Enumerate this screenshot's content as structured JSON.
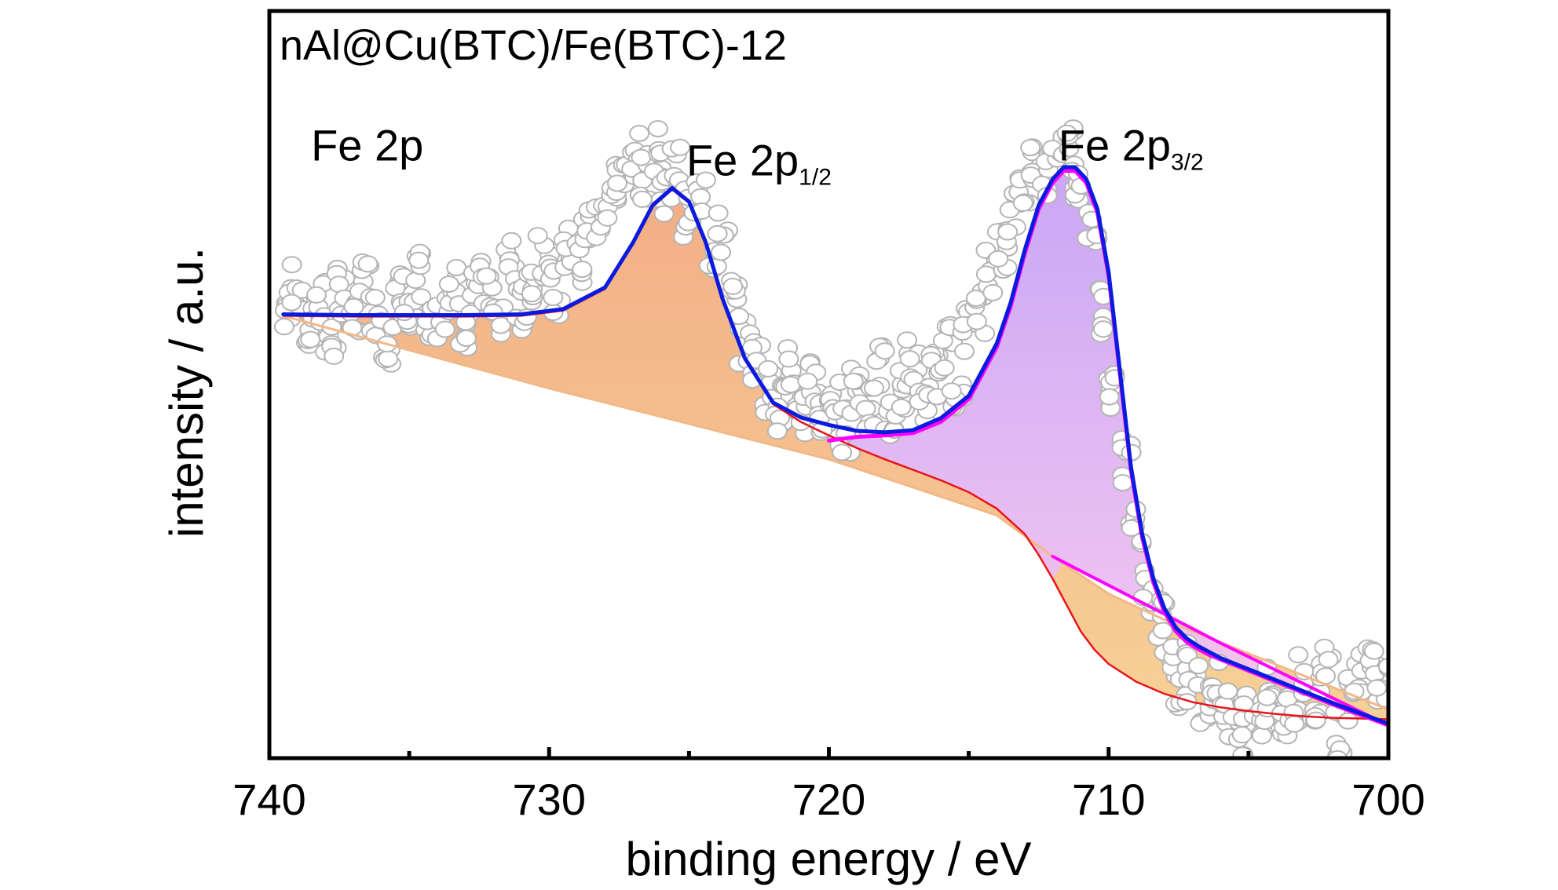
{
  "chart_data": {
    "type": "scatter",
    "title": "nAl@Cu(BTC)/Fe(BTC)-12",
    "xlabel": "binding energy / eV",
    "ylabel": "intensity / a.u.",
    "xlim": [
      740,
      700
    ],
    "ylim": [
      0,
      100
    ],
    "x_ticks": [
      740,
      730,
      720,
      710,
      700
    ],
    "x_tick_labels": [
      "740",
      "730",
      "720",
      "710",
      "700"
    ],
    "grid": false,
    "peaks": [
      {
        "label": "Fe 2p",
        "sub": "",
        "x": 736.5,
        "y": 80
      },
      {
        "label": "Fe 2p",
        "sub": "1/2",
        "x": 722.5,
        "y": 78
      },
      {
        "label": "Fe 2p",
        "sub": "3/2",
        "x": 709.2,
        "y": 80
      }
    ],
    "series": [
      {
        "role": "envelope",
        "color": "#0a1adf",
        "x": [
          739.5,
          737,
          735,
          733,
          731,
          729.5,
          728,
          727,
          726.3,
          725.6,
          725,
          724.4,
          723.8,
          723,
          722,
          721,
          720,
          719,
          718,
          717,
          716,
          715,
          714,
          713.5,
          713,
          712.5,
          712,
          711.6,
          711.2,
          710.8,
          710.4,
          710,
          709.6,
          709.2,
          708.8,
          708.4,
          708,
          707.6,
          707.2,
          706.8,
          706.4,
          706,
          705,
          704,
          703,
          702,
          701,
          700
        ],
        "y": [
          59.4,
          59.3,
          59.3,
          59.3,
          59.4,
          60.1,
          63,
          69,
          74,
          76.3,
          74.5,
          69,
          61.5,
          53.5,
          47.6,
          45.6,
          44.6,
          43.8,
          43.6,
          43.9,
          45.5,
          48.5,
          55.5,
          61,
          68,
          74,
          77.5,
          79.1,
          79.1,
          77.5,
          73.5,
          65,
          52,
          39,
          30,
          24,
          20,
          17.5,
          16,
          15,
          14.2,
          13.4,
          11.9,
          10.4,
          8.9,
          7.4,
          6.0,
          4.6
        ]
      },
      {
        "role": "Fe 2p3/2 component",
        "color": "#ff00ff",
        "x": [
          720,
          719,
          718,
          717,
          716,
          715,
          714,
          713.5,
          713,
          712.5,
          712,
          711.6,
          711.2,
          710.8,
          710.4,
          710,
          709.6,
          709.2,
          708.8,
          708.4,
          708,
          707.6,
          707.2,
          706.8,
          706.4,
          706,
          705,
          704,
          703,
          702,
          701,
          700
        ],
        "y": [
          42.5,
          43.0,
          43.2,
          43.5,
          45.0,
          48.0,
          55.0,
          60.5,
          67.5,
          73.5,
          77.0,
          78.6,
          78.6,
          77.0,
          73.0,
          64.5,
          51.5,
          38.5,
          29.5,
          23.5,
          19.5,
          17.0,
          15.5,
          14.6,
          13.8,
          13.2,
          11.7,
          10.2,
          8.7,
          7.2,
          5.8,
          4.4
        ]
      },
      {
        "role": "Fe 2p3/2 baseline",
        "color": "#ff00ff",
        "x": [
          712,
          706,
          700
        ],
        "y": [
          27.0,
          15.4,
          4.4
        ]
      },
      {
        "role": "Fe 2p1/2 component + baseline",
        "color": "#e8141c",
        "x": [
          739.5,
          737,
          735,
          733,
          731,
          729.5,
          728,
          727,
          726.3,
          725.6,
          725,
          724.4,
          723.8,
          723,
          722,
          721,
          720,
          719,
          718,
          717,
          716,
          715,
          714,
          713,
          712.5,
          712,
          711.5,
          711,
          710.5,
          710,
          709,
          708,
          707,
          706,
          705,
          704,
          703,
          702,
          701,
          700
        ],
        "y": [
          59.2,
          59.1,
          59.1,
          59.1,
          59.2,
          59.9,
          62.8,
          68.8,
          73.8,
          76.1,
          74.3,
          68.8,
          61.3,
          53.3,
          47.4,
          45.0,
          43.2,
          41.5,
          40.0,
          38.6,
          37.2,
          35.6,
          33.4,
          30.0,
          27.2,
          24.0,
          20.5,
          17.0,
          14.5,
          12.6,
          10.2,
          8.6,
          7.5,
          6.8,
          6.3,
          5.9,
          5.6,
          5.4,
          5.3,
          5.2
        ]
      },
      {
        "role": "Shirley baseline",
        "color": "#f2b887",
        "x": [
          739.5,
          730,
          720,
          714,
          712,
          710,
          708,
          704,
          700
        ],
        "y": [
          59.2,
          49.5,
          40.0,
          32.5,
          27.0,
          22.0,
          18.5,
          12.5,
          6.5
        ]
      }
    ],
    "raw_points": {
      "color": "#b4b4b4",
      "x": [
        739.4,
        739.0,
        738.6,
        738.2,
        737.8,
        737.4,
        737.0,
        736.6,
        736.2,
        735.8,
        735.4,
        735.0,
        734.6,
        734.2,
        733.8,
        733.4,
        733.0,
        732.6,
        732.2,
        731.8,
        731.4,
        731.0,
        730.6,
        730.2,
        729.8,
        729.4,
        729.0,
        728.6,
        728.2,
        727.8,
        727.4,
        727.0,
        726.6,
        726.2,
        725.8,
        725.4,
        725.0,
        724.6,
        724.2,
        723.8,
        723.4,
        723.0,
        722.6,
        722.2,
        721.8,
        721.4,
        721.0,
        720.6,
        720.2,
        719.8,
        719.4,
        719.0,
        718.6,
        718.2,
        717.8,
        717.4,
        717.0,
        716.6,
        716.2,
        715.8,
        715.4,
        715.0,
        714.6,
        714.2,
        713.8,
        713.4,
        713.0,
        712.6,
        712.2,
        711.8,
        711.4,
        711.0,
        710.6,
        710.2,
        709.8,
        709.4,
        709.0,
        708.6,
        708.2,
        707.8,
        707.4,
        707.0,
        706.6,
        706.2,
        705.8,
        705.4,
        705.0,
        704.6,
        704.2,
        703.8,
        703.4,
        703.0,
        702.6,
        702.2,
        701.8,
        701.4,
        701.0,
        700.6,
        700.2
      ],
      "y": [
        60.5,
        63.0,
        57.0,
        61.0,
        55.5,
        62.5,
        58.0,
        64.0,
        59.5,
        56.0,
        62.0,
        58.5,
        64.5,
        57.0,
        60.5,
        63.0,
        58.0,
        65.0,
        61.5,
        59.0,
        66.5,
        60.0,
        64.0,
        67.5,
        62.5,
        68.0,
        66.0,
        71.0,
        72.5,
        75.0,
        77.5,
        80.5,
        78.0,
        81.0,
        76.0,
        79.0,
        73.0,
        75.5,
        68.0,
        70.0,
        61.5,
        56.0,
        53.0,
        49.5,
        47.0,
        52.5,
        45.5,
        50.0,
        46.0,
        48.5,
        44.0,
        50.5,
        46.5,
        52.0,
        45.0,
        49.0,
        53.5,
        47.0,
        51.5,
        55.0,
        50.0,
        57.5,
        60.0,
        65.0,
        68.5,
        73.0,
        76.0,
        80.0,
        78.5,
        83.0,
        81.5,
        76.5,
        72.0,
        60.0,
        50.0,
        40.0,
        30.5,
        22.0,
        18.5,
        14.0,
        9.5,
        12.5,
        7.5,
        10.0,
        6.0,
        3.5,
        8.5,
        5.0,
        9.0,
        4.0,
        7.0,
        11.0,
        6.5,
        13.0,
        3.0,
        8.0,
        12.0,
        14.5,
        10.5
      ]
    }
  }
}
